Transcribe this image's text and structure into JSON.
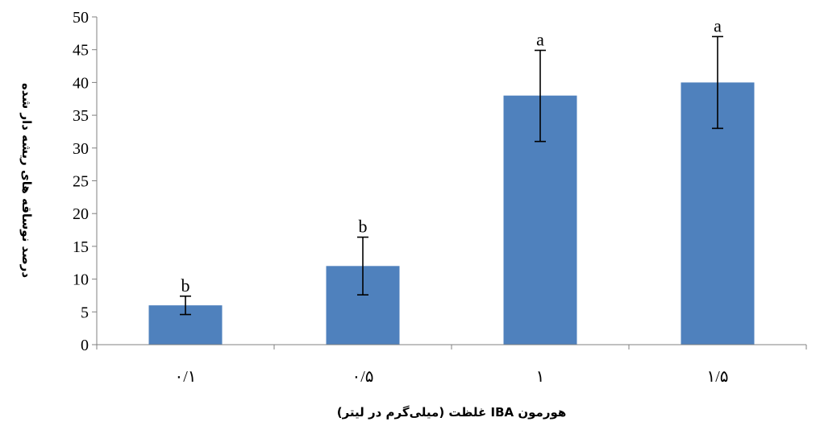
{
  "chart_data": {
    "type": "bar",
    "categories": [
      "٠/١",
      "٠/۵",
      "١",
      "١/۵"
    ],
    "values": [
      6,
      12,
      38,
      40
    ],
    "error_low": [
      4.6,
      7.6,
      31,
      33
    ],
    "error_high": [
      7.4,
      16.4,
      44.9,
      47
    ],
    "significance": [
      "b",
      "b",
      "a",
      "a"
    ],
    "xlabel": "هورمون IBA غلظت (میلی‌گرم در لیتر)",
    "ylabel": "درصد نوساقه های ریشه دار شده",
    "ylim": [
      0,
      50
    ],
    "yticks": [
      0,
      5,
      10,
      15,
      20,
      25,
      30,
      35,
      40,
      45,
      50
    ],
    "bar_color": "#4f81bd",
    "grid": false,
    "legend": "none"
  }
}
